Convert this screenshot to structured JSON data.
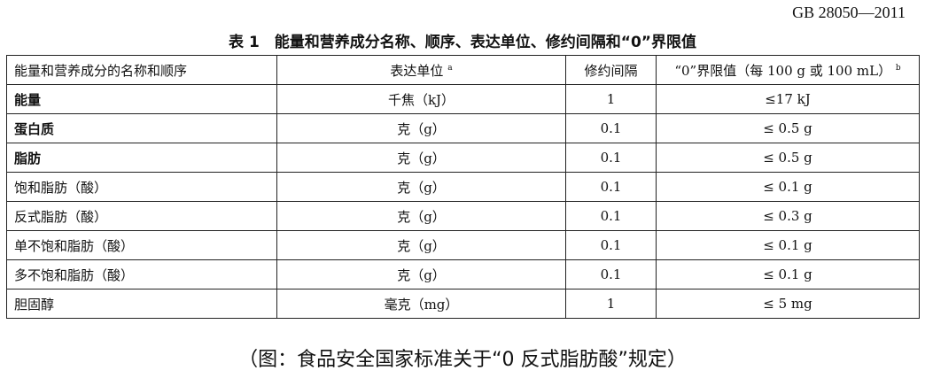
{
  "standard": "GB 28050—2011",
  "title": "表 1　能量和营养成分名称、顺序、表达单位、修约间隔和“0”界限值",
  "headers": {
    "name": "能量和营养成分的名称和顺序",
    "unit": "表达单位",
    "unit_sup": "a",
    "interval": "修约间隔",
    "limit": "“0”界限值（每 100 g 或 100 mL）",
    "limit_sup": "b"
  },
  "rows": [
    {
      "name": "能量",
      "unit": "千焦（kJ）",
      "interval": "1",
      "limit": "≤17 kJ",
      "bold": true
    },
    {
      "name": "蛋白质",
      "unit": "克（g）",
      "interval": "0.1",
      "limit": "≤ 0.5 g",
      "bold": true
    },
    {
      "name": "脂肪",
      "unit": "克（g）",
      "interval": "0.1",
      "limit": "≤ 0.5 g",
      "bold": true
    },
    {
      "name": "饱和脂肪（酸）",
      "unit": "克（g）",
      "interval": "0.1",
      "limit": "≤ 0.1 g"
    },
    {
      "name": "反式脂肪（酸）",
      "unit": "克（g）",
      "interval": "0.1",
      "limit": "≤ 0.3 g"
    },
    {
      "name": "单不饱和脂肪（酸）",
      "unit": "克（g）",
      "interval": "0.1",
      "limit": "≤ 0.1 g"
    },
    {
      "name": "多不饱和脂肪（酸）",
      "unit": "克（g）",
      "interval": "0.1",
      "limit": "≤ 0.1 g"
    },
    {
      "name": "胆固醇",
      "unit": "毫克（mg）",
      "interval": "1",
      "limit": "≤ 5 mg"
    }
  ],
  "caption": "（图：食品安全国家标准关于“0 反式脂肪酸”规定）"
}
